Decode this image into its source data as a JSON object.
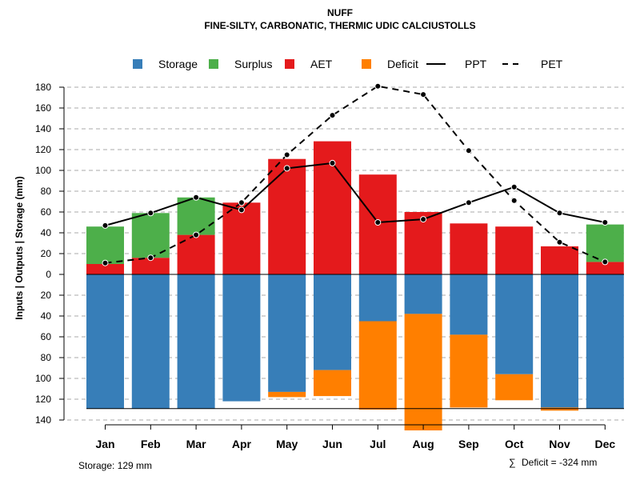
{
  "chart_data": {
    "type": "bar",
    "title_line1": "NUFF",
    "title_line2": "FINE-SILTY, CARBONATIC, THERMIC UDIC CALCIUSTOLLS",
    "ylabel": "Inputs | Outputs | Storage    (mm)",
    "ylim": [
      -140,
      190
    ],
    "yticks": [
      180,
      160,
      140,
      120,
      100,
      80,
      60,
      40,
      20,
      0,
      -20,
      -40,
      -60,
      -80,
      -100,
      -120,
      -140
    ],
    "ytick_labels": [
      "180",
      "160",
      "140",
      "120",
      "100",
      "80",
      "60",
      "40",
      "20",
      "0",
      "20",
      "40",
      "60",
      "80",
      "100",
      "120",
      "140"
    ],
    "grid": true,
    "categories": [
      "Jan",
      "Feb",
      "Mar",
      "Apr",
      "May",
      "Jun",
      "Jul",
      "Aug",
      "Sep",
      "Oct",
      "Nov",
      "Dec"
    ],
    "legend_position": "top",
    "legend": [
      {
        "name": "Storage",
        "kind": "box",
        "color": "#377eb8"
      },
      {
        "name": "Surplus",
        "kind": "box",
        "color": "#4daf4a"
      },
      {
        "name": "AET",
        "kind": "box",
        "color": "#e41a1c"
      },
      {
        "name": "Deficit",
        "kind": "box",
        "color": "#ff7f00"
      },
      {
        "name": "PPT",
        "kind": "solid"
      },
      {
        "name": "PET",
        "kind": "dashed"
      }
    ],
    "series": [
      {
        "name": "AET",
        "color": "#e41a1c",
        "values": [
          10,
          16,
          38,
          69,
          111,
          128,
          96,
          60,
          49,
          46,
          27,
          12
        ]
      },
      {
        "name": "Surplus",
        "color": "#4daf4a",
        "values": [
          36,
          43,
          36,
          0,
          0,
          0,
          0,
          0,
          0,
          0,
          0,
          36
        ]
      },
      {
        "name": "Storage",
        "color": "#377eb8",
        "values": [
          129,
          129,
          129,
          122,
          113,
          92,
          45,
          38,
          58,
          96,
          128,
          129
        ]
      },
      {
        "name": "Deficit",
        "color": "#ff7f00",
        "values": [
          0,
          0,
          0,
          0,
          5,
          25,
          85,
          112,
          70,
          25,
          3,
          0
        ]
      },
      {
        "name": "PPT",
        "style": "solid",
        "values": [
          47,
          59,
          74,
          62,
          102,
          107,
          50,
          53,
          69,
          84,
          59,
          50
        ]
      },
      {
        "name": "PET",
        "style": "dashed",
        "values": [
          11,
          16,
          38,
          69,
          115,
          153,
          181,
          173,
          119,
          71,
          31,
          12
        ]
      }
    ],
    "storage_capacity": 129,
    "storage_label": "Storage: 129 mm",
    "deficit_symbol": "∑",
    "deficit_label": "Deficit = -324 mm"
  }
}
